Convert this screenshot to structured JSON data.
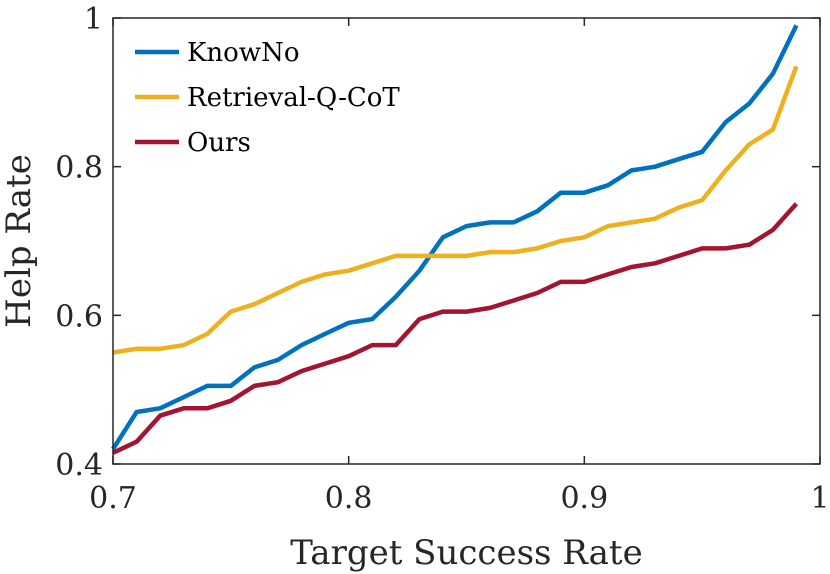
{
  "chart_data": {
    "type": "line",
    "title": "",
    "xlabel": "Target Success Rate",
    "ylabel": "Help Rate",
    "xlim": [
      0.7,
      1.0
    ],
    "ylim": [
      0.4,
      1.0
    ],
    "xticks": [
      0.7,
      0.8,
      0.9,
      1.0
    ],
    "xtick_labels": [
      "0.7",
      "0.8",
      "0.9",
      "1"
    ],
    "yticks": [
      0.4,
      0.6,
      0.8,
      1.0
    ],
    "ytick_labels": [
      "0.4",
      "0.6",
      "0.8",
      "1"
    ],
    "grid": false,
    "legend_position": "top-left",
    "x": [
      0.7,
      0.71,
      0.72,
      0.73,
      0.74,
      0.75,
      0.76,
      0.77,
      0.78,
      0.79,
      0.8,
      0.81,
      0.82,
      0.83,
      0.84,
      0.85,
      0.86,
      0.87,
      0.88,
      0.89,
      0.9,
      0.91,
      0.92,
      0.93,
      0.94,
      0.95,
      0.96,
      0.97,
      0.98,
      0.99
    ],
    "series": [
      {
        "name": "KnowNo",
        "color": "#0072BD",
        "values": [
          0.42,
          0.47,
          0.475,
          0.49,
          0.505,
          0.505,
          0.53,
          0.54,
          0.56,
          0.575,
          0.59,
          0.595,
          0.625,
          0.66,
          0.705,
          0.72,
          0.725,
          0.725,
          0.74,
          0.765,
          0.765,
          0.775,
          0.795,
          0.8,
          0.81,
          0.82,
          0.86,
          0.885,
          0.925,
          0.99
        ]
      },
      {
        "name": "Retrieval-Q-CoT",
        "color": "#EDB120",
        "values": [
          0.55,
          0.555,
          0.555,
          0.56,
          0.575,
          0.605,
          0.615,
          0.63,
          0.645,
          0.655,
          0.66,
          0.67,
          0.68,
          0.68,
          0.68,
          0.68,
          0.685,
          0.685,
          0.69,
          0.7,
          0.705,
          0.72,
          0.725,
          0.73,
          0.745,
          0.755,
          0.795,
          0.83,
          0.85,
          0.935
        ]
      },
      {
        "name": "Ours",
        "color": "#A2142F",
        "values": [
          0.415,
          0.43,
          0.465,
          0.475,
          0.475,
          0.485,
          0.505,
          0.51,
          0.525,
          0.535,
          0.545,
          0.56,
          0.56,
          0.595,
          0.605,
          0.605,
          0.61,
          0.62,
          0.63,
          0.645,
          0.645,
          0.655,
          0.665,
          0.67,
          0.68,
          0.69,
          0.69,
          0.695,
          0.715,
          0.75
        ]
      }
    ]
  }
}
